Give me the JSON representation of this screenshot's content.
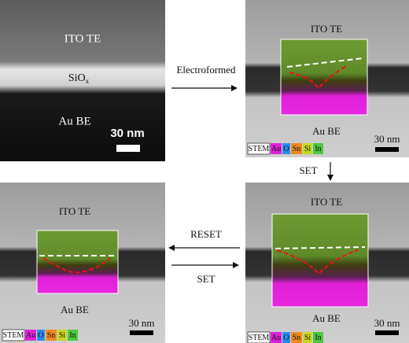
{
  "panels": [
    {
      "top_label": "ITO TE",
      "middle_label": "SiO",
      "middle_sub": "x",
      "bottom_label": "Au BE",
      "scale": "30 nm"
    },
    {
      "top_label": "ITO TE",
      "bottom_label": "Au BE",
      "scale": "30 nm"
    },
    {
      "top_label": "ITO TE",
      "bottom_label": "Au BE",
      "scale": "30 nm"
    },
    {
      "top_label": "ITO TE",
      "bottom_label": "Au BE",
      "scale": "30 nm"
    }
  ],
  "arrows": [
    "Electroformed",
    "SET",
    "RESET",
    "SET"
  ],
  "legend": [
    "STEM",
    "Au",
    "O",
    "Sn",
    "Si",
    "In"
  ]
}
